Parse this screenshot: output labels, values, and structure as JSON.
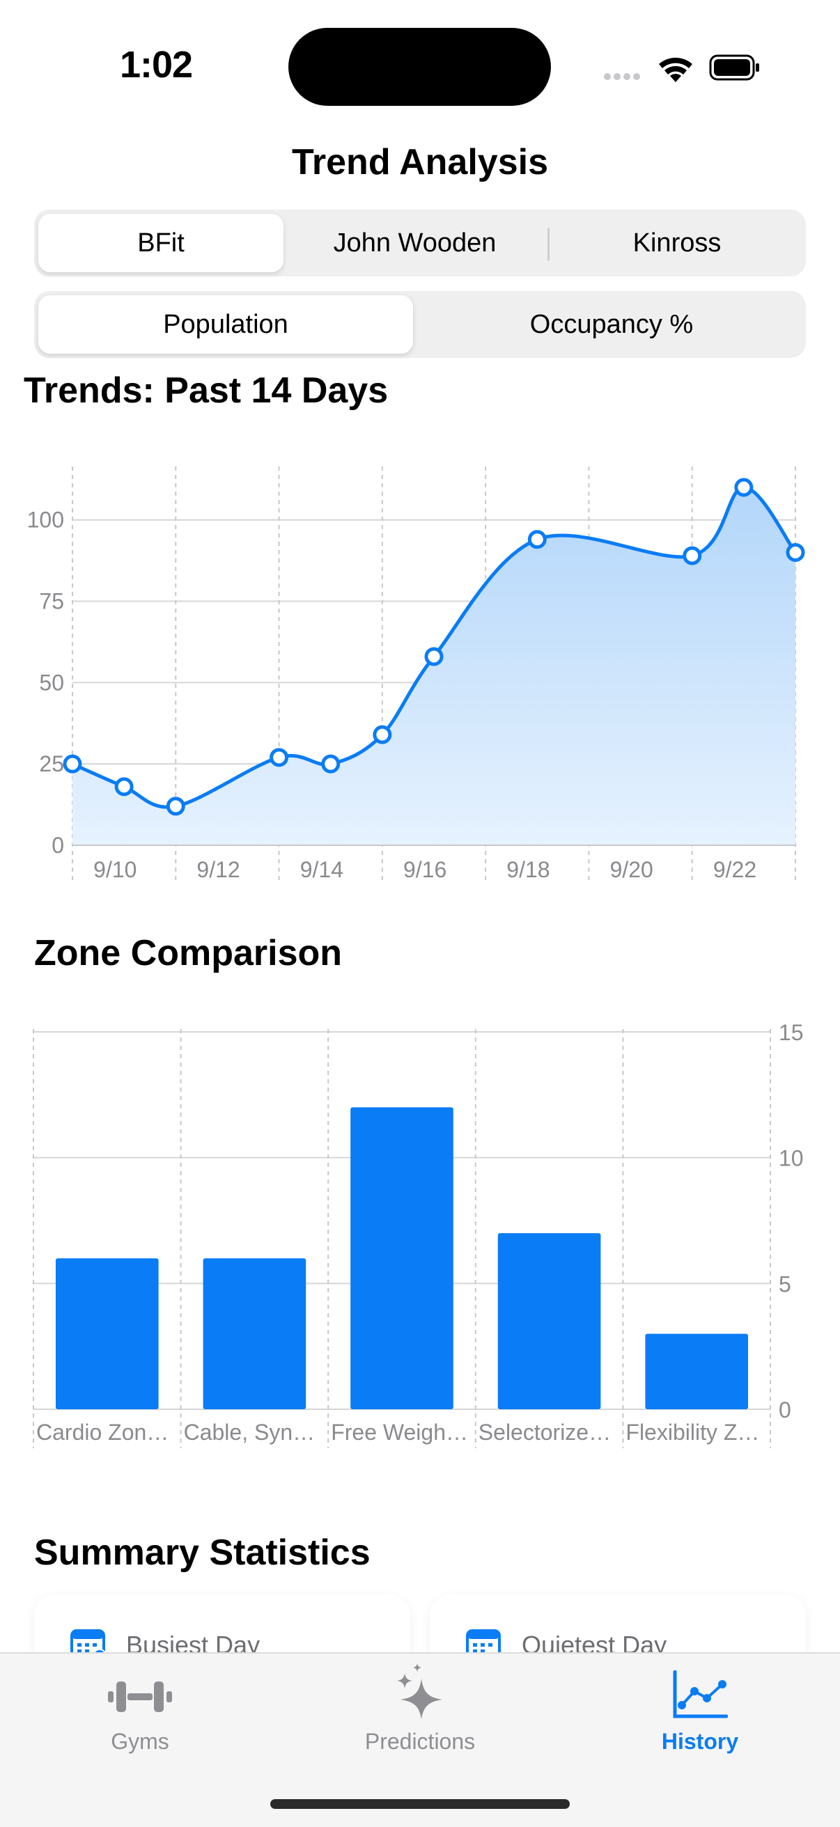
{
  "status": {
    "time": "1:02"
  },
  "header": {
    "title": "Trend Analysis"
  },
  "gym_segment": {
    "options": [
      "BFit",
      "John Wooden",
      "Kinross"
    ],
    "selected": "BFit"
  },
  "metric_segment": {
    "options": [
      "Population",
      "Occupancy %"
    ],
    "selected": "Population"
  },
  "trends": {
    "title": "Trends: Past 14 Days"
  },
  "zones": {
    "title": "Zone Comparison"
  },
  "summary": {
    "title": "Summary Statistics",
    "cards": [
      {
        "label": "Busiest Day"
      },
      {
        "label": "Quietest Day"
      }
    ]
  },
  "tabbar": {
    "items": [
      {
        "label": "Gyms",
        "icon": "dumbbell-icon"
      },
      {
        "label": "Predictions",
        "icon": "sparkles-icon"
      },
      {
        "label": "History",
        "icon": "line-chart-icon",
        "active": true
      }
    ]
  },
  "colors": {
    "accent": "#0a7cf5",
    "area_top": "#b3d6fa",
    "area_bottom": "#e6f2fe"
  },
  "chart_data": [
    {
      "type": "line",
      "title": "Trends: Past 14 Days",
      "x": [
        "9/9",
        "9/10",
        "9/11",
        "9/13",
        "9/14",
        "9/15",
        "9/16",
        "9/18",
        "9/21",
        "9/22",
        "9/23"
      ],
      "xtick_labels": [
        "9/10",
        "9/12",
        "9/14",
        "9/16",
        "9/18",
        "9/20",
        "9/22"
      ],
      "x_day_index": [
        9,
        10,
        11,
        13,
        14,
        15,
        16,
        18,
        21,
        22,
        23
      ],
      "values": [
        25,
        18,
        12,
        27,
        25,
        34,
        58,
        94,
        89,
        110,
        90
      ],
      "ylim": [
        0,
        110
      ],
      "yticks": [
        0,
        25,
        50,
        75,
        100
      ],
      "area_fill": true,
      "grid": true
    },
    {
      "type": "bar",
      "title": "Zone Comparison",
      "categories": [
        "Cardio Zon…",
        "Cable, Syn…",
        "Free Weigh…",
        "Selectorize…",
        "Flexibility Z…"
      ],
      "values": [
        6,
        6,
        12,
        7,
        3
      ],
      "ylim": [
        0,
        15
      ],
      "yticks": [
        0,
        5,
        10,
        15
      ],
      "y_axis_side": "right",
      "grid": true
    }
  ]
}
